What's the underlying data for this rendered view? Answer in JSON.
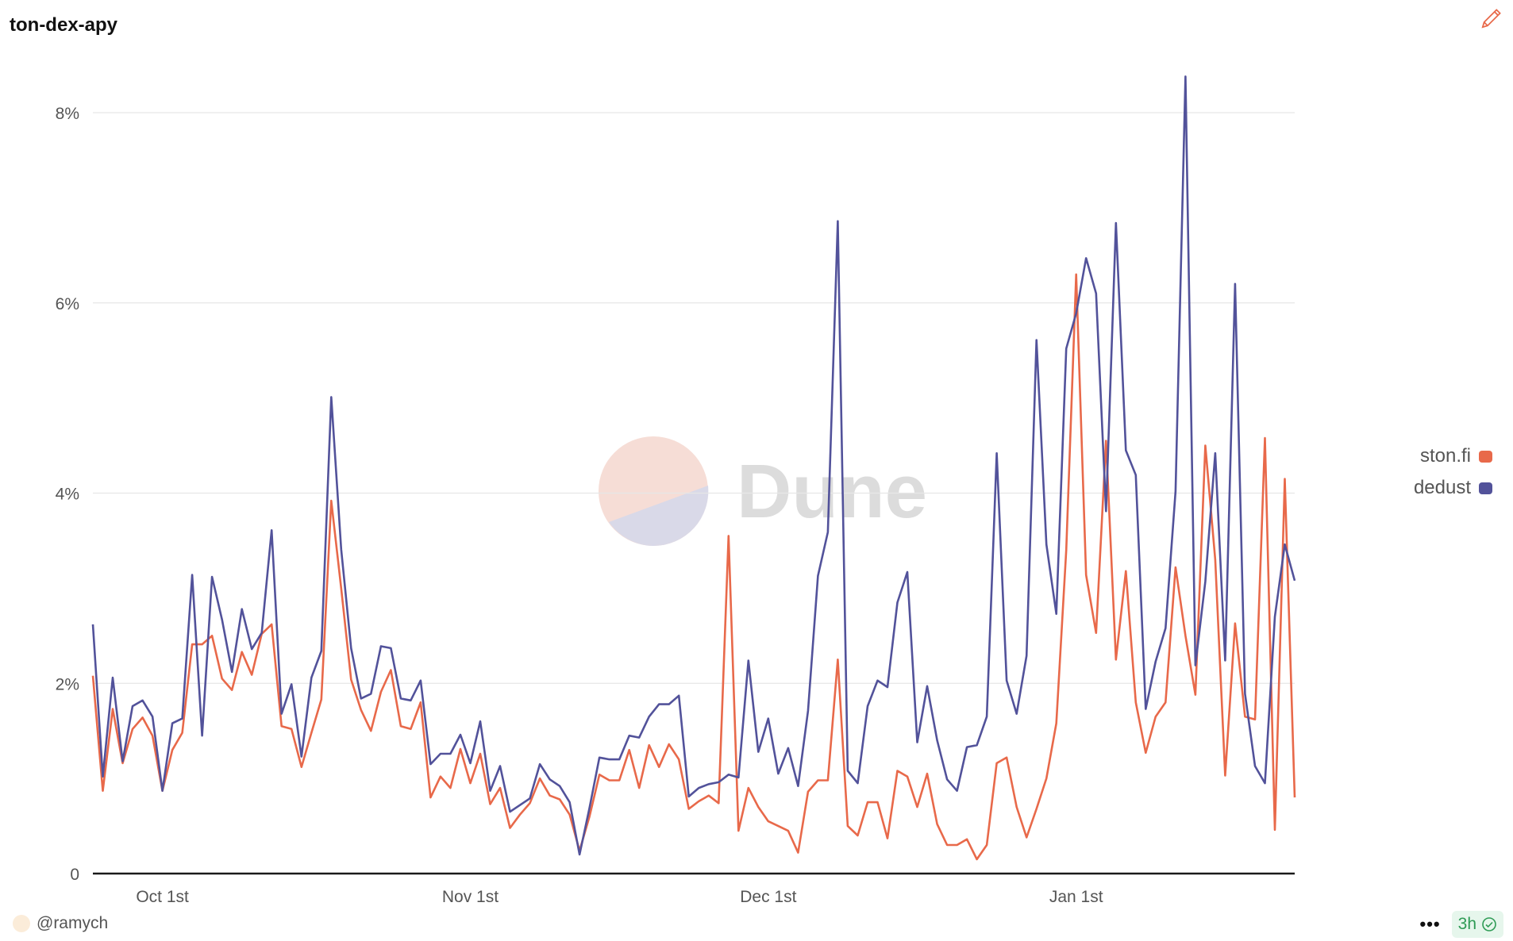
{
  "title": "ton-dex-apy",
  "icons": {
    "edit": "pencil-icon",
    "more": "more-dots-icon",
    "status": "check-circle-icon"
  },
  "watermark": "Dune",
  "footer": {
    "author": "@ramych",
    "more_label": "•••",
    "age": "3h"
  },
  "colors": {
    "ston_fi": "#e8694a",
    "dedust": "#52529a",
    "status_green": "#2e9b55"
  },
  "chart_data": {
    "type": "line",
    "title": "ton-dex-apy",
    "xlabel": "",
    "ylabel": "",
    "ylim": [
      0,
      8.4
    ],
    "yticks": [
      0,
      2,
      4,
      6,
      8
    ],
    "ytick_labels": [
      "0",
      "2%",
      "4%",
      "6%",
      "8%"
    ],
    "xtick_labels": [
      {
        "date": "10-01",
        "label": "Oct 1st"
      },
      {
        "date": "11-01",
        "label": "Nov 1st"
      },
      {
        "date": "12-01",
        "label": "Dec 1st"
      },
      {
        "date": "01-01",
        "label": "Jan 1st"
      }
    ],
    "grid": true,
    "legend_placement": "right",
    "x": [
      "09-24",
      "09-25",
      "09-26",
      "09-27",
      "09-28",
      "09-29",
      "09-30",
      "10-01",
      "10-02",
      "10-03",
      "10-04",
      "10-05",
      "10-06",
      "10-07",
      "10-08",
      "10-09",
      "10-10",
      "10-11",
      "10-12",
      "10-13",
      "10-14",
      "10-15",
      "10-16",
      "10-17",
      "10-18",
      "10-19",
      "10-20",
      "10-21",
      "10-22",
      "10-23",
      "10-24",
      "10-25",
      "10-26",
      "10-27",
      "10-28",
      "10-29",
      "10-30",
      "10-31",
      "11-01",
      "11-02",
      "11-03",
      "11-04",
      "11-05",
      "11-06",
      "11-07",
      "11-08",
      "11-09",
      "11-10",
      "11-11",
      "11-12",
      "11-13",
      "11-14",
      "11-15",
      "11-16",
      "11-17",
      "11-18",
      "11-19",
      "11-20",
      "11-21",
      "11-22",
      "11-23",
      "11-24",
      "11-25",
      "11-26",
      "11-27",
      "11-28",
      "11-29",
      "11-30",
      "12-01",
      "12-02",
      "12-03",
      "12-04",
      "12-05",
      "12-06",
      "12-07",
      "12-08",
      "12-09",
      "12-10",
      "12-11",
      "12-12",
      "12-13",
      "12-14",
      "12-15",
      "12-16",
      "12-17",
      "12-18",
      "12-19",
      "12-20",
      "12-21",
      "12-22",
      "12-23",
      "12-24",
      "12-25",
      "12-26",
      "12-27",
      "12-28",
      "12-29",
      "12-30",
      "12-31",
      "01-01",
      "01-02",
      "01-03",
      "01-04",
      "01-05",
      "01-06",
      "01-07",
      "01-08",
      "01-09",
      "01-10",
      "01-11",
      "01-12",
      "01-13",
      "01-14",
      "01-15",
      "01-16",
      "01-17",
      "01-18",
      "01-19",
      "01-20",
      "01-21",
      "01-22",
      "01-23"
    ],
    "series": [
      {
        "name": "ston.fi",
        "color": "#e8694a",
        "values": [
          2.08,
          0.87,
          1.73,
          1.16,
          1.52,
          1.64,
          1.45,
          0.87,
          1.3,
          1.48,
          2.41,
          2.41,
          2.5,
          2.05,
          1.93,
          2.33,
          2.09,
          2.52,
          2.62,
          1.55,
          1.52,
          1.12,
          1.48,
          1.83,
          3.92,
          3.0,
          2.04,
          1.72,
          1.5,
          1.91,
          2.14,
          1.55,
          1.52,
          1.8,
          0.8,
          1.02,
          0.9,
          1.31,
          0.95,
          1.26,
          0.73,
          0.9,
          0.48,
          0.62,
          0.74,
          1.0,
          0.82,
          0.78,
          0.62,
          0.24,
          0.6,
          1.04,
          0.98,
          0.98,
          1.3,
          0.9,
          1.35,
          1.12,
          1.36,
          1.2,
          0.68,
          0.76,
          0.82,
          0.74,
          3.55,
          0.45,
          0.9,
          0.7,
          0.55,
          0.5,
          0.45,
          0.22,
          0.86,
          0.98,
          0.98,
          2.25,
          0.5,
          0.4,
          0.75,
          0.75,
          0.37,
          1.08,
          1.02,
          0.7,
          1.05,
          0.52,
          0.3,
          0.3,
          0.36,
          0.15,
          0.3,
          1.16,
          1.22,
          0.7,
          0.38,
          0.68,
          1.0,
          1.58,
          3.4,
          6.3,
          3.14,
          2.53,
          4.55,
          2.25,
          3.18,
          1.8,
          1.27,
          1.65,
          1.8,
          3.22,
          2.5,
          1.88,
          4.5,
          3.3,
          1.03,
          2.63,
          1.65,
          1.62,
          4.58,
          0.46,
          4.15,
          0.8
        ]
      },
      {
        "name": "dedust",
        "color": "#52529a",
        "values": [
          2.62,
          1.02,
          2.06,
          1.18,
          1.76,
          1.82,
          1.65,
          0.87,
          1.58,
          1.63,
          3.14,
          1.45,
          3.12,
          2.67,
          2.12,
          2.78,
          2.36,
          2.53,
          3.61,
          1.68,
          1.99,
          1.23,
          2.06,
          2.34,
          5.01,
          3.41,
          2.37,
          1.84,
          1.89,
          2.39,
          2.37,
          1.84,
          1.82,
          2.03,
          1.15,
          1.26,
          1.26,
          1.46,
          1.16,
          1.6,
          0.87,
          1.13,
          0.65,
          0.72,
          0.79,
          1.15,
          0.99,
          0.92,
          0.75,
          0.2,
          0.69,
          1.22,
          1.2,
          1.2,
          1.45,
          1.43,
          1.65,
          1.78,
          1.78,
          1.87,
          0.81,
          0.9,
          0.94,
          0.96,
          1.04,
          1.01,
          2.24,
          1.28,
          1.63,
          1.05,
          1.32,
          0.92,
          1.71,
          3.13,
          3.59,
          6.86,
          1.08,
          0.95,
          1.76,
          2.03,
          1.96,
          2.85,
          3.17,
          1.38,
          1.97,
          1.4,
          0.99,
          0.87,
          1.33,
          1.35,
          1.65,
          4.42,
          2.03,
          1.68,
          2.29,
          5.61,
          3.46,
          2.73,
          5.52,
          5.89,
          6.47,
          6.1,
          3.81,
          6.84,
          4.45,
          4.19,
          1.73,
          2.23,
          2.58,
          4.02,
          8.38,
          2.19,
          3.07,
          4.42,
          2.24,
          6.2,
          1.89,
          1.13,
          0.95,
          2.7,
          3.46,
          3.08
        ]
      }
    ]
  }
}
